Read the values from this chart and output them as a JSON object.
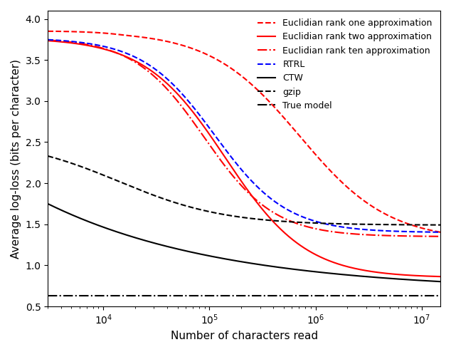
{
  "title": "",
  "xlabel": "Number of characters read",
  "ylabel": "Average log-loss (bits per character)",
  "xlim_log": [
    3000,
    15000000.0
  ],
  "ylim": [
    0.5,
    4.1
  ],
  "yticks": [
    0.5,
    1.0,
    1.5,
    2.0,
    2.5,
    3.0,
    3.5,
    4.0
  ],
  "background_color": "#ffffff",
  "lines": {
    "rank_one": {
      "label": "Euclidian rank one approximation",
      "color": "#ff0000",
      "linestyle": "--",
      "linewidth": 1.5
    },
    "rank_two": {
      "label": "Euclidian rank two approximation",
      "color": "#ff0000",
      "linestyle": "-",
      "linewidth": 1.5
    },
    "rank_ten": {
      "label": "Euclidian rank ten approximation",
      "color": "#ff0000",
      "linestyle": "-.",
      "linewidth": 1.5
    },
    "rtrl": {
      "label": "RTRL",
      "color": "#0000ff",
      "linestyle": "--",
      "linewidth": 1.5
    },
    "ctw": {
      "label": "CTW",
      "color": "#000000",
      "linestyle": "-",
      "linewidth": 1.5
    },
    "gzip": {
      "label": "gzip",
      "color": "#000000",
      "linestyle": "--",
      "linewidth": 1.5
    },
    "true_model": {
      "label": "True model",
      "color": "#000000",
      "linestyle": "-.",
      "linewidth": 1.5
    }
  }
}
